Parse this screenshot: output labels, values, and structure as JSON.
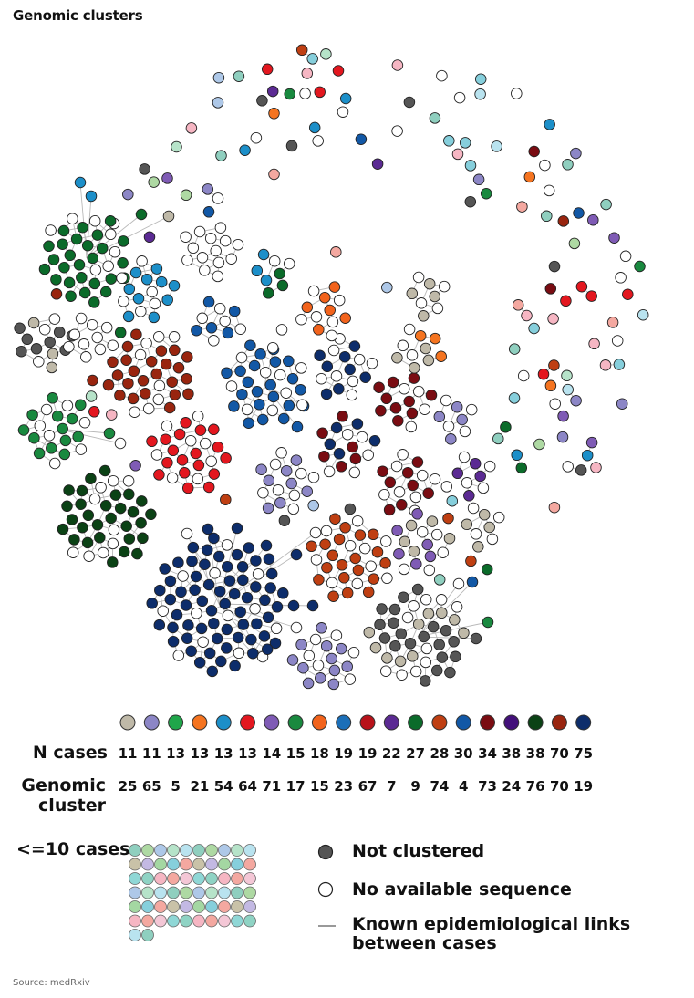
{
  "title": "Genomic clusters",
  "legend": {
    "n_cases_label": "N cases",
    "genomic_cluster_label": "Genomic cluster",
    "small_label": "<=10 cases",
    "not_clustered": "Not clustered",
    "no_sequence": "No available sequence",
    "epi_links": "Known epidemiological links between cases",
    "clusters": [
      {
        "n": "11",
        "id": "25",
        "color": "#bfb9a8"
      },
      {
        "n": "11",
        "id": "65",
        "color": "#8c86c6"
      },
      {
        "n": "13",
        "id": "5",
        "color": "#1fa64a"
      },
      {
        "n": "13",
        "id": "21",
        "color": "#f57420"
      },
      {
        "n": "13",
        "id": "54",
        "color": "#1c8fc9"
      },
      {
        "n": "13",
        "id": "64",
        "color": "#e3171f"
      },
      {
        "n": "14",
        "id": "71",
        "color": "#7f5bb5"
      },
      {
        "n": "15",
        "id": "17",
        "color": "#19893f"
      },
      {
        "n": "18",
        "id": "15",
        "color": "#f2631c"
      },
      {
        "n": "19",
        "id": "23",
        "color": "#1b6fb8"
      },
      {
        "n": "19",
        "id": "67",
        "color": "#b8121a"
      },
      {
        "n": "22",
        "id": "7",
        "color": "#5b2a93"
      },
      {
        "n": "27",
        "id": "9",
        "color": "#0b6b2a"
      },
      {
        "n": "28",
        "id": "74",
        "color": "#bf3f12"
      },
      {
        "n": "30",
        "id": "4",
        "color": "#1258a6"
      },
      {
        "n": "34",
        "id": "73",
        "color": "#7a0c12"
      },
      {
        "n": "38",
        "id": "24",
        "color": "#43107a"
      },
      {
        "n": "38",
        "id": "76",
        "color": "#0b4215"
      },
      {
        "n": "70",
        "id": "70",
        "color": "#99250f"
      },
      {
        "n": "75",
        "id": "19",
        "color": "#0d2d6b"
      }
    ],
    "small_colors": [
      "#8fcfbf",
      "#86cfdc",
      "#8fd3c4",
      "#aed9a3",
      "#f4a8a0",
      "#f6b6c3",
      "#aec8e8",
      "#c9c2a8",
      "#f4a8a0",
      "#b6e3c9",
      "#c3b9e3",
      "#f4c7d6",
      "#b9e3ef",
      "#a4d7a2",
      "#8fd7d6"
    ],
    "not_clustered_color": "#555555",
    "no_sequence_color": "#ffffff"
  },
  "source": "Source: medRxiv"
}
